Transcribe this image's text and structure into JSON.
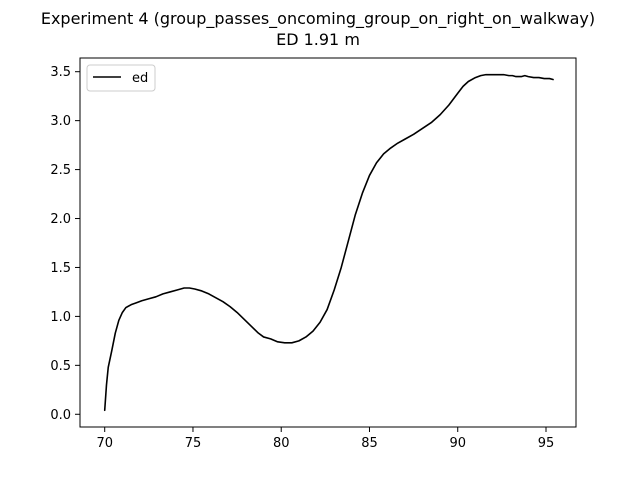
{
  "chart_data": {
    "type": "line",
    "title": "Experiment 4 (group_passes_oncoming_group_on_right_on_walkway)",
    "subtitle": "ED 1.91 m",
    "xlabel": "",
    "ylabel": "",
    "xlim": [
      68.6,
      96.7
    ],
    "ylim": [
      -0.13,
      3.64
    ],
    "xticks": [
      70,
      75,
      80,
      85,
      90,
      95
    ],
    "yticks": [
      0.0,
      0.5,
      1.0,
      1.5,
      2.0,
      2.5,
      3.0,
      3.5
    ],
    "xtick_labels": [
      "70",
      "75",
      "80",
      "85",
      "90",
      "95"
    ],
    "ytick_labels": [
      "0.0",
      "0.5",
      "1.0",
      "1.5",
      "2.0",
      "2.5",
      "3.0",
      "3.5"
    ],
    "grid": false,
    "legend": {
      "position": "upper-left",
      "entries": [
        "ed"
      ]
    },
    "series": [
      {
        "name": "ed",
        "color": "#000000",
        "x": [
          70.0,
          70.1,
          70.2,
          70.4,
          70.6,
          70.8,
          71.0,
          71.2,
          71.5,
          71.8,
          72.1,
          72.5,
          72.9,
          73.3,
          73.7,
          74.1,
          74.5,
          74.8,
          75.1,
          75.5,
          75.9,
          76.3,
          76.7,
          77.1,
          77.5,
          77.9,
          78.3,
          78.7,
          79.0,
          79.4,
          79.8,
          80.2,
          80.6,
          81.0,
          81.4,
          81.8,
          82.2,
          82.6,
          83.0,
          83.4,
          83.8,
          84.2,
          84.6,
          85.0,
          85.4,
          85.8,
          86.2,
          86.6,
          87.0,
          87.5,
          88.0,
          88.5,
          89.0,
          89.5,
          90.0,
          90.3,
          90.6,
          91.0,
          91.3,
          91.6,
          92.0,
          92.3,
          92.6,
          92.9,
          93.1,
          93.3,
          93.6,
          93.8,
          94.0,
          94.3,
          94.6,
          94.9,
          95.2,
          95.4
        ],
        "y": [
          0.04,
          0.3,
          0.48,
          0.65,
          0.83,
          0.96,
          1.04,
          1.09,
          1.12,
          1.14,
          1.16,
          1.18,
          1.2,
          1.23,
          1.25,
          1.27,
          1.29,
          1.29,
          1.28,
          1.26,
          1.23,
          1.19,
          1.15,
          1.1,
          1.04,
          0.97,
          0.9,
          0.83,
          0.79,
          0.77,
          0.74,
          0.73,
          0.73,
          0.75,
          0.79,
          0.85,
          0.94,
          1.07,
          1.27,
          1.5,
          1.77,
          2.04,
          2.26,
          2.44,
          2.57,
          2.66,
          2.72,
          2.77,
          2.81,
          2.86,
          2.92,
          2.98,
          3.06,
          3.16,
          3.28,
          3.35,
          3.4,
          3.44,
          3.46,
          3.47,
          3.47,
          3.47,
          3.47,
          3.46,
          3.46,
          3.45,
          3.45,
          3.46,
          3.45,
          3.44,
          3.44,
          3.43,
          3.43,
          3.42
        ]
      }
    ]
  }
}
